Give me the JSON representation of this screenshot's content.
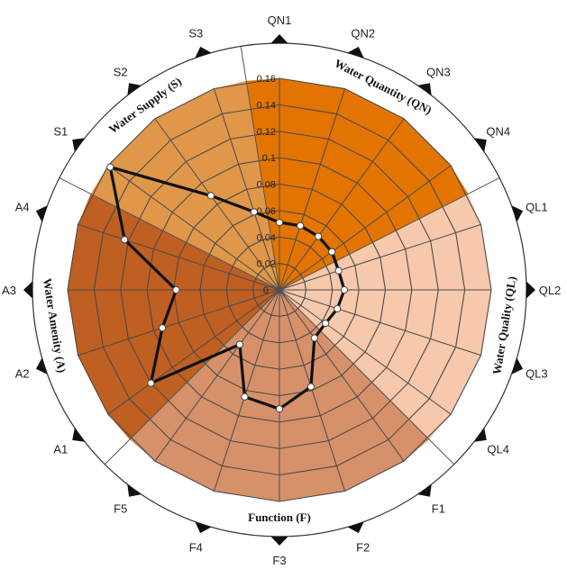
{
  "chart_data": {
    "type": "radar",
    "title": "",
    "axes": [
      "QN1",
      "QN2",
      "QN3",
      "QN4",
      "QL1",
      "QL2",
      "QL3",
      "QL4",
      "F1",
      "F2",
      "F3",
      "F4",
      "F5",
      "A1",
      "A2",
      "A3",
      "A4",
      "S1",
      "S2",
      "S3"
    ],
    "ticks": [
      "0",
      "0.02",
      "0.04",
      "0.06",
      "0.08",
      "0.1",
      "0.12",
      "0.14",
      "0.16"
    ],
    "rlim": [
      0,
      0.16
    ],
    "groups": [
      {
        "label": "Water Quantity (QN)",
        "axes": [
          "QN1",
          "QN2",
          "QN3",
          "QN4"
        ],
        "color": "#e37400"
      },
      {
        "label": "Water Quality (QL)",
        "axes": [
          "QL1",
          "QL2",
          "QL3",
          "QL4"
        ],
        "color": "#f6c8ac"
      },
      {
        "label": "Function (F)",
        "axes": [
          "F1",
          "F2",
          "F3",
          "F4",
          "F5"
        ],
        "color": "#d6916a"
      },
      {
        "label": "Water Amenity (A)",
        "axes": [
          "A1",
          "A2",
          "A3",
          "A4"
        ],
        "color": "#c05f22"
      },
      {
        "label": "Water Supply (S)",
        "axes": [
          "S1",
          "S2",
          "S3"
        ],
        "color": "#e0974a"
      }
    ],
    "series": [
      {
        "values": [
          0.051,
          0.051,
          0.05,
          0.049,
          0.047,
          0.049,
          0.046,
          0.043,
          0.045,
          0.077,
          0.09,
          0.085,
          0.051,
          0.12,
          0.093,
          0.078,
          0.123,
          0.158,
          0.088,
          0.062
        ]
      }
    ],
    "grid": true,
    "line_color": "#111111"
  }
}
